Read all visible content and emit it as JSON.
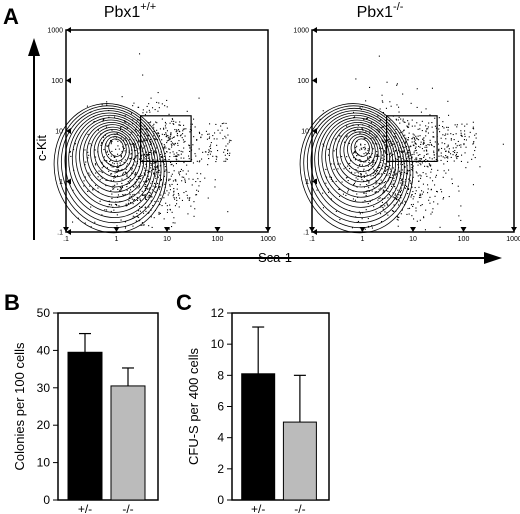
{
  "panels": {
    "a": {
      "letter": "A"
    },
    "b": {
      "letter": "B"
    },
    "c": {
      "letter": "C"
    }
  },
  "flow": {
    "plots": [
      {
        "title_base": "Pbx1",
        "title_sup": "+/+"
      },
      {
        "title_base": "Pbx1",
        "title_sup": "-/-"
      }
    ],
    "y_title": "c-Kit",
    "x_title": "Sca-1",
    "log_ticks": [
      "1",
      "1",
      "10",
      "100",
      "1000"
    ],
    "log_tick_first": ".1",
    "x_ticks_display": [
      ".1",
      "1",
      "10",
      "100",
      "1000"
    ],
    "y_ticks_display": [
      "1000",
      "100",
      "10",
      "1",
      ".1"
    ]
  },
  "chart_data": [
    {
      "type": "contour",
      "title": "Pbx1+/+",
      "xlabel": "Sca-1",
      "ylabel": "c-Kit",
      "x_scale": "log",
      "y_scale": "log",
      "xlim": [
        0.1,
        1000
      ],
      "ylim": [
        0.1,
        1000
      ],
      "gate": {
        "x": [
          3,
          30
        ],
        "y": [
          2.5,
          20
        ]
      }
    },
    {
      "type": "contour",
      "title": "Pbx1-/-",
      "xlabel": "Sca-1",
      "ylabel": "c-Kit",
      "x_scale": "log",
      "y_scale": "log",
      "xlim": [
        0.1,
        1000
      ],
      "ylim": [
        0.1,
        1000
      ],
      "gate": {
        "x": [
          3,
          30
        ],
        "y": [
          2.5,
          20
        ]
      }
    },
    {
      "type": "bar",
      "categories": [
        "+/-",
        "-/-"
      ],
      "values": [
        39.5,
        30.5
      ],
      "errors": [
        5.0,
        4.8
      ],
      "ylabel": "Colonies per 100 cells",
      "ylim": [
        0,
        50
      ],
      "yticks": [
        0,
        10,
        20,
        30,
        40,
        50
      ],
      "colors": [
        "#000000",
        "#bbbbbb"
      ]
    },
    {
      "type": "bar",
      "categories": [
        "+/-",
        "-/-"
      ],
      "values": [
        8.1,
        5.0
      ],
      "errors": [
        3.0,
        3.0
      ],
      "ylabel": "CFU-S per 400 cells",
      "ylim": [
        0,
        12
      ],
      "yticks": [
        0,
        2,
        4,
        6,
        8,
        10,
        12
      ],
      "colors": [
        "#000000",
        "#bbbbbb"
      ]
    }
  ]
}
